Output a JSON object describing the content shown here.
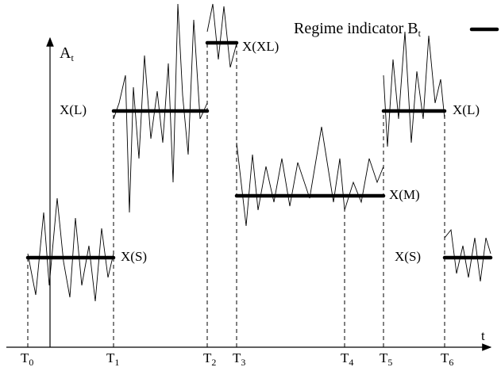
{
  "legend": {
    "text": "Regime indicator B",
    "sub": "t"
  },
  "axis": {
    "y_label": {
      "base": "A",
      "sub": "t"
    },
    "x_label": "t"
  },
  "time_points": [
    {
      "base": "T",
      "sub": "0"
    },
    {
      "base": "T",
      "sub": "1"
    },
    {
      "base": "T",
      "sub": "2"
    },
    {
      "base": "T",
      "sub": "3"
    },
    {
      "base": "T",
      "sub": "4"
    },
    {
      "base": "T",
      "sub": "5"
    },
    {
      "base": "T",
      "sub": "6"
    }
  ],
  "regimes": [
    {
      "label": "X(S)"
    },
    {
      "label": "X(L)"
    },
    {
      "label": "X(XL)"
    },
    {
      "label": "X(M)"
    },
    {
      "label": "X(L)"
    },
    {
      "label": "X(S)"
    }
  ]
}
